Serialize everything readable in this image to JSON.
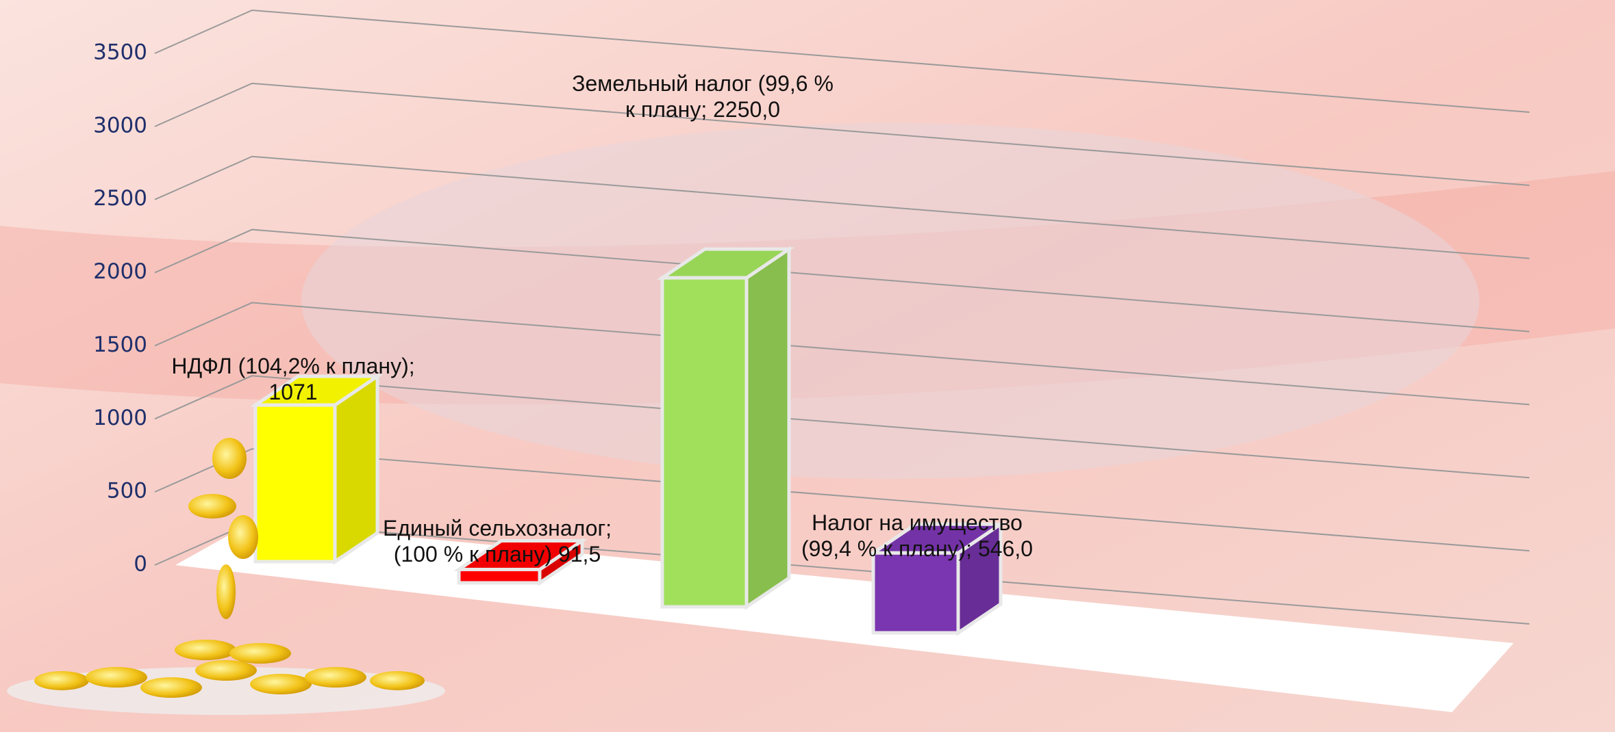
{
  "chart_data": {
    "type": "bar3d",
    "categories": [
      null,
      null,
      null,
      null
    ],
    "values": [
      1071,
      91.5,
      2250,
      546
    ],
    "value_labels": [
      "НДФЛ (104,2% к плану);\n1071",
      "Единый сельхозналог;\n(100 % к плану) 91,5",
      "Земельный налог (99,6 %\nк плану; 2250,0",
      "Налог на имущество\n(99,4 % к плану); 546,0"
    ],
    "colors": [
      "#ffff00",
      "#ff0000",
      "#a0e05a",
      "#7a35b0"
    ],
    "ylim": [
      0,
      3500
    ],
    "yticks": [
      0,
      500,
      1000,
      1500,
      2000,
      2500,
      3000,
      3500
    ],
    "grid": true
  }
}
